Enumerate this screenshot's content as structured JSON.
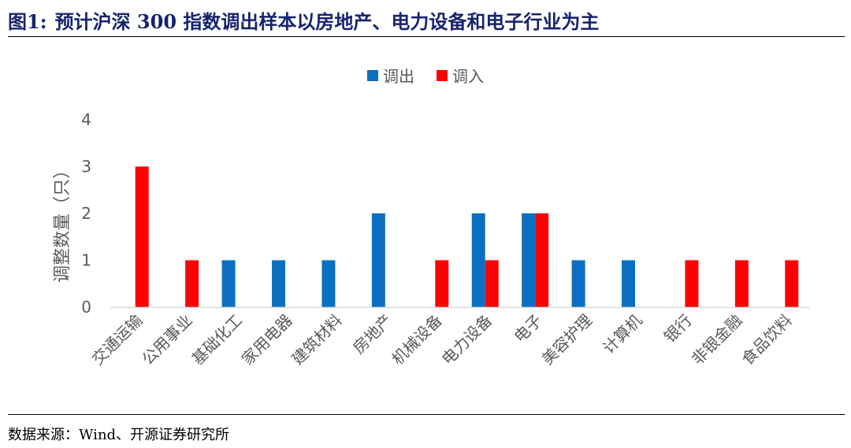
{
  "figure": {
    "label": "图1:",
    "title": "预计沪深 300 指数调出样本以房地产、电力设备和电子行业为主"
  },
  "source": "数据来源：Wind、开源证券研究所",
  "colors": {
    "out": "#0b6fc1",
    "in": "#ff0000",
    "axis": "#d9d9d9",
    "text": "#595959"
  },
  "chart_data": {
    "type": "bar",
    "title": "",
    "xlabel": "",
    "ylabel": "调整数量（只）",
    "ylim": [
      0,
      4
    ],
    "yticks": [
      0,
      1,
      2,
      3,
      4
    ],
    "grid": false,
    "legend_position": "top-center",
    "categories": [
      "交通运输",
      "公用事业",
      "基础化工",
      "家用电器",
      "建筑材料",
      "房地产",
      "机械设备",
      "电力设备",
      "电子",
      "美容护理",
      "计算机",
      "银行",
      "非银金融",
      "食品饮料"
    ],
    "series": [
      {
        "name": "调出",
        "values": [
          0,
          0,
          1,
          1,
          1,
          2,
          0,
          2,
          2,
          1,
          1,
          0,
          0,
          0
        ]
      },
      {
        "name": "调入",
        "values": [
          3,
          1,
          0,
          0,
          0,
          0,
          1,
          1,
          2,
          0,
          0,
          1,
          1,
          1
        ]
      }
    ]
  }
}
